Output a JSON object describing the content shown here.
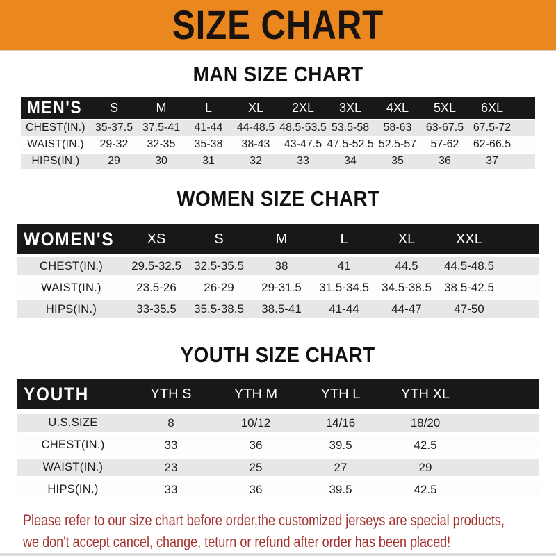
{
  "banner": {
    "title": "SIZE CHART"
  },
  "colors": {
    "banner_bg": "#EA871E",
    "header_bar_bg": "#181818",
    "row_stripe_gray": "#E7E7E7",
    "footer_red": "#A53431"
  },
  "sections": [
    {
      "heading": "MAN SIZE CHART",
      "table": {
        "header": {
          "label": "MEN'S",
          "columns": [
            "S",
            "M",
            "L",
            "XL",
            "2XL",
            "3XL",
            "4XL",
            "5XL",
            "6XL"
          ]
        },
        "rows": [
          {
            "label": "CHEST(IN.)",
            "values": [
              "35-37.5",
              "37.5-41",
              "41-44",
              "44-48.5",
              "48.5-53.5",
              "53.5-58",
              "58-63",
              "63-67.5",
              "67.5-72"
            ]
          },
          {
            "label": "WAIST(IN.)",
            "values": [
              "29-32",
              "32-35",
              "35-38",
              "38-43",
              "43-47.5",
              "47.5-52.5",
              "52.5-57",
              "57-62",
              "62-66.5"
            ]
          },
          {
            "label": "HIPS(IN.)",
            "values": [
              "29",
              "30",
              "31",
              "32",
              "33",
              "34",
              "35",
              "36",
              "37"
            ]
          }
        ]
      }
    },
    {
      "heading": "WOMEN SIZE CHART",
      "table": {
        "header": {
          "label": "WOMEN'S",
          "columns": [
            "XS",
            "S",
            "M",
            "L",
            "XL",
            "XXL"
          ]
        },
        "rows": [
          {
            "label": "CHEST(IN.)",
            "values": [
              "29.5-32.5",
              "32.5-35.5",
              "38",
              "41",
              "44.5",
              "44.5-48.5"
            ]
          },
          {
            "label": "WAIST(IN.)",
            "values": [
              "23.5-26",
              "26-29",
              "29-31.5",
              "31.5-34.5",
              "34.5-38.5",
              "38.5-42.5"
            ]
          },
          {
            "label": "HIPS(IN.)",
            "values": [
              "33-35.5",
              "35.5-38.5",
              "38.5-41",
              "41-44",
              "44-47",
              "47-50"
            ]
          }
        ]
      }
    },
    {
      "heading": "YOUTH SIZE CHART",
      "table": {
        "header": {
          "label": "YOUTH",
          "columns": [
            "YTH S",
            "YTH M",
            "YTH L",
            "YTH XL"
          ]
        },
        "rows": [
          {
            "label": "U.S.SIZE",
            "values": [
              "8",
              "10/12",
              "14/16",
              "18/20"
            ]
          },
          {
            "label": "CHEST(IN.)",
            "values": [
              "33",
              "36",
              "39.5",
              "42.5"
            ]
          },
          {
            "label": "WAIST(IN.)",
            "values": [
              "23",
              "25",
              "27",
              "29"
            ]
          },
          {
            "label": "HIPS(IN.)",
            "values": [
              "33",
              "36",
              "39.5",
              "42.5"
            ]
          }
        ]
      }
    }
  ],
  "footer": {
    "line1": "Please refer to our size chart before order,the customized jerseys are special products,",
    "line2": "we don't accept cancel, change, teturn or refund after order has been placed!"
  }
}
